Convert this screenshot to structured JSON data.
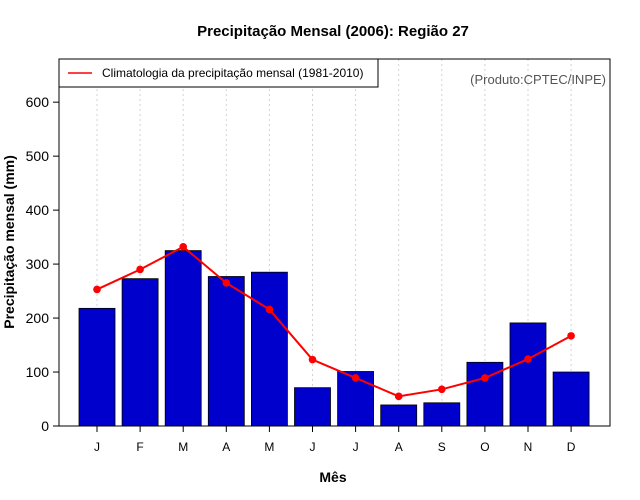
{
  "chart_data": {
    "type": "bar",
    "title": "Precipitação Mensal (2006): Região 27",
    "xlabel": "Mês",
    "ylabel": "Precipitação mensal (mm)",
    "ylim": [
      0,
      680
    ],
    "yticks": [
      0,
      100,
      200,
      300,
      400,
      500,
      600
    ],
    "categories": [
      "J",
      "F",
      "M",
      "A",
      "M",
      "J",
      "J",
      "A",
      "S",
      "O",
      "N",
      "D"
    ],
    "series": [
      {
        "name": "Precipitação mensal (2006)",
        "kind": "bar",
        "color": "#0000CD",
        "values": [
          218,
          273,
          325,
          277,
          285,
          71,
          101,
          39,
          43,
          118,
          191,
          100
        ]
      },
      {
        "name": "Climatologia da precipitação mensal (1981-2010)",
        "kind": "line",
        "color": "#FF0000",
        "values": [
          253,
          290,
          332,
          265,
          216,
          123,
          89,
          55,
          68,
          89,
          124,
          167
        ]
      }
    ],
    "legend": {
      "label": "Climatologia da precipitação mensal (1981-2010)",
      "placement": "top-left"
    },
    "credit": "(Produto:CPTEC/INPE)",
    "grid": "vertical-dotted"
  }
}
